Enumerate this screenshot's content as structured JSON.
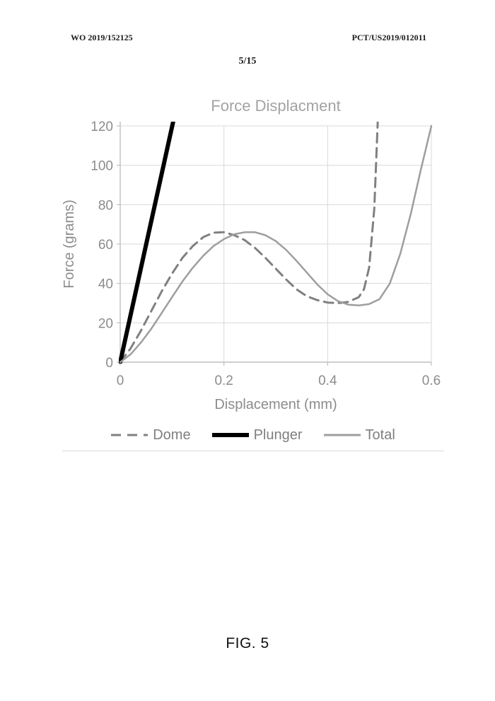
{
  "page": {
    "header_left": "WO 2019/152125",
    "header_right": "PCT/US2019/012011",
    "page_number": "5/15",
    "figure_caption": "FIG. 5"
  },
  "chart_data": {
    "type": "line",
    "title": "Force Displacment",
    "xlabel": "Displacement (mm)",
    "ylabel": "Force (grams)",
    "xlim": [
      0,
      0.6
    ],
    "ylim": [
      0,
      120
    ],
    "x_ticks": [
      0,
      0.2,
      0.4,
      0.6
    ],
    "y_ticks": [
      0,
      20,
      40,
      60,
      80,
      100,
      120
    ],
    "grid": true,
    "legend_position": "bottom",
    "series": [
      {
        "name": "Dome",
        "style": "dashed",
        "color": "#808080",
        "width": 3,
        "x": [
          0,
          0.02,
          0.04,
          0.06,
          0.08,
          0.1,
          0.12,
          0.14,
          0.16,
          0.18,
          0.2,
          0.22,
          0.24,
          0.26,
          0.28,
          0.3,
          0.32,
          0.34,
          0.36,
          0.38,
          0.4,
          0.42,
          0.44,
          0.46,
          0.47,
          0.48,
          0.49,
          0.497
        ],
        "y": [
          0,
          7,
          16,
          26,
          36,
          45,
          53,
          59,
          63.5,
          65.8,
          66,
          64.5,
          62,
          58,
          53,
          47.5,
          42,
          37,
          33.5,
          31.5,
          30.3,
          30,
          30.6,
          33,
          37,
          48,
          78,
          125
        ]
      },
      {
        "name": "Plunger",
        "style": "solid",
        "color": "#000000",
        "width": 6,
        "x": [
          0,
          0.102
        ],
        "y": [
          0,
          122
        ]
      },
      {
        "name": "Total",
        "style": "solid",
        "color": "#9e9e9e",
        "width": 2.5,
        "x": [
          0,
          0.02,
          0.04,
          0.06,
          0.08,
          0.1,
          0.12,
          0.14,
          0.16,
          0.18,
          0.2,
          0.22,
          0.24,
          0.26,
          0.28,
          0.3,
          0.32,
          0.34,
          0.36,
          0.38,
          0.4,
          0.42,
          0.44,
          0.46,
          0.48,
          0.5,
          0.52,
          0.54,
          0.56,
          0.58,
          0.6
        ],
        "y": [
          0,
          4,
          10,
          17,
          25,
          33,
          41,
          48,
          54,
          59,
          62.5,
          65,
          66,
          66,
          64.5,
          61.5,
          57,
          51.5,
          45.5,
          39.5,
          34.5,
          31,
          29.2,
          28.8,
          29.5,
          32,
          40,
          55,
          75,
          98,
          120
        ]
      }
    ]
  }
}
